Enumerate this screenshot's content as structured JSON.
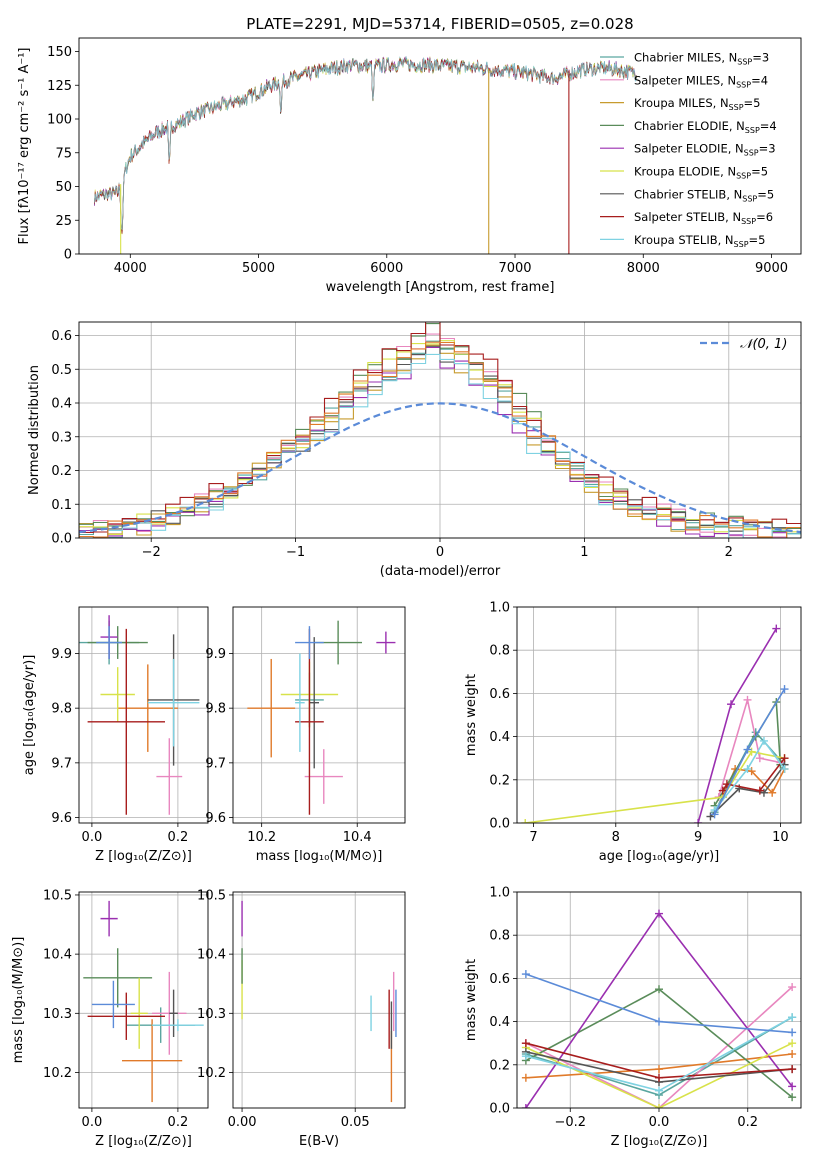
{
  "figure": {
    "title": "PLATE=2291, MJD=53714, FIBERID=0505, z=0.028"
  },
  "chart_data": [
    {
      "id": "spectrum",
      "type": "line",
      "xlabel": "wavelength [Angstrom, rest frame]",
      "ylabel": "Flux [fλ10⁻¹⁷ erg cm⁻² s⁻¹ A⁻¹]",
      "xlim": [
        3600,
        9230
      ],
      "ylim": [
        0,
        160
      ],
      "xticks": [
        4000,
        5000,
        6000,
        7000,
        8000,
        9000
      ],
      "yticks": [
        0,
        25,
        50,
        75,
        100,
        125,
        150
      ],
      "continuum": {
        "x": [
          3720,
          3800,
          3900,
          4000,
          4100,
          4200,
          4300,
          4400,
          4500,
          4700,
          4900,
          5100,
          5300,
          5500,
          5700,
          5900,
          6100,
          6300,
          6500,
          6700,
          6900,
          7100,
          7300,
          7500,
          7700,
          7950
        ],
        "y": [
          42,
          44,
          45,
          72,
          82,
          90,
          94,
          98,
          104,
          110,
          115,
          125,
          131,
          136,
          140,
          139,
          141,
          140,
          139,
          138,
          136,
          134,
          130,
          136,
          138,
          134
        ]
      },
      "dips": [
        {
          "x": 3934,
          "y": 12
        },
        {
          "x": 4304,
          "y": 60
        },
        {
          "x": 5175,
          "y": 100
        },
        {
          "x": 5893,
          "y": 108
        }
      ],
      "spikes": [
        {
          "x": 3925,
          "y": 0
        },
        {
          "x": 6795,
          "y": 0
        },
        {
          "x": 7420,
          "y": 0
        }
      ],
      "legend_position": "upper right",
      "series": [
        {
          "name": "Chabrier MILES, N_SSP=3",
          "label": "Chabrier MILES, N",
          "sub": "SSP",
          "tail": "=3",
          "color": "#5aa6a0"
        },
        {
          "name": "Salpeter MILES, N_SSP=4",
          "label": "Salpeter MILES, N",
          "sub": "SSP",
          "tail": "=4",
          "color": "#e887bf"
        },
        {
          "name": "Kroupa MILES, N_SSP=5",
          "label": "Kroupa MILES, N",
          "sub": "SSP",
          "tail": "=5",
          "color": "#c79b2e"
        },
        {
          "name": "Chabrier ELODIE, N_SSP=4",
          "label": "Chabrier ELODIE, N",
          "sub": "SSP",
          "tail": "=4",
          "color": "#5a8c5a"
        },
        {
          "name": "Salpeter ELODIE, N_SSP=3",
          "label": "Salpeter ELODIE, N",
          "sub": "SSP",
          "tail": "=3",
          "color": "#9a2fb0"
        },
        {
          "name": "Kroupa ELODIE, N_SSP=5",
          "label": "Kroupa ELODIE, N",
          "sub": "SSP",
          "tail": "=5",
          "color": "#d8e24a"
        },
        {
          "name": "Chabrier STELIB, N_SSP=5",
          "label": "Chabrier STELIB, N",
          "sub": "SSP",
          "tail": "=5",
          "color": "#555555"
        },
        {
          "name": "Salpeter STELIB, N_SSP=6",
          "label": "Salpeter STELIB, N",
          "sub": "SSP",
          "tail": "=6",
          "color": "#a71d1d"
        },
        {
          "name": "Kroupa STELIB, N_SSP=5",
          "label": "Kroupa STELIB, N",
          "sub": "SSP",
          "tail": "=5",
          "color": "#7fd2e2"
        }
      ]
    },
    {
      "id": "residual_hist",
      "type": "histogram",
      "xlabel": "(data-model)/error",
      "ylabel": "Normed distribution",
      "xlim": [
        -2.5,
        2.5
      ],
      "ylim": [
        0,
        0.64
      ],
      "xticks": [
        -2,
        -1,
        0,
        1,
        2
      ],
      "yticks": [
        0.0,
        0.1,
        0.2,
        0.3,
        0.4,
        0.5,
        0.6
      ],
      "grid": true,
      "bin_width": 0.1,
      "envelope_x": [
        -2.45,
        -2.25,
        -2.05,
        -1.85,
        -1.65,
        -1.45,
        -1.25,
        -1.05,
        -0.85,
        -0.65,
        -0.45,
        -0.25,
        -0.15,
        -0.05,
        0.05,
        0.15,
        0.25,
        0.45,
        0.65,
        0.85,
        1.05,
        1.25,
        1.45,
        1.65,
        1.85,
        2.05,
        2.25,
        2.45
      ],
      "envelope_y": [
        0.02,
        0.03,
        0.04,
        0.07,
        0.1,
        0.14,
        0.2,
        0.26,
        0.32,
        0.4,
        0.48,
        0.52,
        0.56,
        0.58,
        0.55,
        0.53,
        0.5,
        0.42,
        0.32,
        0.24,
        0.17,
        0.11,
        0.08,
        0.05,
        0.04,
        0.03,
        0.02,
        0.01
      ],
      "gaussian": {
        "name": "𝒩(0, 1)",
        "mu": 0,
        "sigma": 1,
        "color": "#5b8bd8"
      },
      "legend_position": "upper right"
    },
    {
      "id": "age_vs_Z",
      "type": "errorbar",
      "xlabel": "Z [log₁₀(Z/Z⊙)]",
      "ylabel": "age  [log₁₀(age/yr)]",
      "xlim": [
        -0.03,
        0.27
      ],
      "ylim": [
        9.59,
        9.985
      ],
      "xticks": [
        0.0,
        0.2
      ],
      "yticks": [
        9.6,
        9.7,
        9.8,
        9.9
      ],
      "points": [
        {
          "x": 0.04,
          "xerr": 0.07,
          "y": 9.92,
          "yerr": 0.04,
          "color": "#5aa6a0"
        },
        {
          "x": 0.18,
          "xerr": 0.03,
          "y": 9.675,
          "yerr": 0.07,
          "color": "#e887bf"
        },
        {
          "x": 0.13,
          "xerr": 0.07,
          "y": 9.8,
          "yerr": 0.08,
          "color": "#e07a2a"
        },
        {
          "x": 0.06,
          "xerr": 0.07,
          "y": 9.92,
          "yerr": 0.03,
          "color": "#5a8c5a"
        },
        {
          "x": 0.04,
          "xerr": 0.02,
          "y": 9.93,
          "yerr": 0.04,
          "color": "#9a2fb0"
        },
        {
          "x": 0.06,
          "xerr": 0.04,
          "y": 9.825,
          "yerr": 0.05,
          "color": "#d8e24a"
        },
        {
          "x": 0.19,
          "xerr": 0.06,
          "y": 9.815,
          "yerr": 0.12,
          "color": "#555555"
        },
        {
          "x": 0.08,
          "xerr": 0.09,
          "y": 9.775,
          "yerr": 0.17,
          "color": "#a71d1d"
        },
        {
          "x": 0.19,
          "xerr": 0.06,
          "y": 9.81,
          "yerr": 0.08,
          "color": "#7fd2e2"
        },
        {
          "x": 0.04,
          "xerr": 0.03,
          "y": 9.92,
          "yerr": 0.03,
          "color": "#5b8bd8"
        }
      ]
    },
    {
      "id": "age_vs_mass",
      "type": "errorbar",
      "xlabel": "mass [log₁₀(M/M⊙)]",
      "ylabel": "",
      "xlim": [
        10.14,
        10.5
      ],
      "ylim": [
        9.59,
        9.985
      ],
      "xticks": [
        10.2,
        10.4
      ],
      "yticks": [
        9.6,
        9.7,
        9.8,
        9.9
      ],
      "points": [
        {
          "x": 10.3,
          "xerr": 0.03,
          "y": 9.815,
          "yerr": 0.05,
          "color": "#5aa6a0"
        },
        {
          "x": 10.33,
          "xerr": 0.04,
          "y": 9.675,
          "yerr": 0.05,
          "color": "#e887bf"
        },
        {
          "x": 10.22,
          "xerr": 0.05,
          "y": 9.8,
          "yerr": 0.09,
          "color": "#e07a2a"
        },
        {
          "x": 10.36,
          "xerr": 0.05,
          "y": 9.92,
          "yerr": 0.04,
          "color": "#5a8c5a"
        },
        {
          "x": 10.46,
          "xerr": 0.02,
          "y": 9.92,
          "yerr": 0.02,
          "color": "#9a2fb0"
        },
        {
          "x": 10.3,
          "xerr": 0.06,
          "y": 9.825,
          "yerr": 0.06,
          "color": "#d8e24a"
        },
        {
          "x": 10.31,
          "xerr": 0.01,
          "y": 9.81,
          "yerr": 0.12,
          "color": "#555555"
        },
        {
          "x": 10.3,
          "xerr": 0.03,
          "y": 9.775,
          "yerr": 0.17,
          "color": "#a71d1d"
        },
        {
          "x": 10.28,
          "xerr": 0.01,
          "y": 9.81,
          "yerr": 0.09,
          "color": "#7fd2e2"
        },
        {
          "x": 10.3,
          "xerr": 0.03,
          "y": 9.92,
          "yerr": 0.03,
          "color": "#5b8bd8"
        }
      ]
    },
    {
      "id": "massweight_vs_age",
      "type": "line",
      "xlabel": "age  [log₁₀(age/yr)]",
      "ylabel": "mass weight",
      "xlim": [
        6.8,
        10.25
      ],
      "ylim": [
        0,
        1
      ],
      "xticks": [
        7,
        8,
        9,
        10
      ],
      "yticks": [
        0.0,
        0.2,
        0.4,
        0.6,
        0.8,
        1.0
      ],
      "grid": true,
      "marker": "+",
      "series": [
        {
          "color": "#5aa6a0",
          "x": [
            9.2,
            9.7,
            10.05
          ],
          "y": [
            0.05,
            0.42,
            0.27
          ]
        },
        {
          "color": "#e887bf",
          "x": [
            9.25,
            9.6,
            9.75,
            10.0
          ],
          "y": [
            0.12,
            0.57,
            0.3,
            0.28
          ]
        },
        {
          "color": "#e07a2a",
          "x": [
            9.3,
            9.45,
            9.65,
            9.9,
            10.05
          ],
          "y": [
            0.12,
            0.25,
            0.24,
            0.14,
            0.25
          ]
        },
        {
          "color": "#5a8c5a",
          "x": [
            9.2,
            9.7,
            9.95,
            10.0
          ],
          "y": [
            0.08,
            0.4,
            0.56,
            0.27
          ]
        },
        {
          "color": "#9a2fb0",
          "x": [
            9.0,
            9.4,
            9.95
          ],
          "y": [
            0.0,
            0.55,
            0.9
          ]
        },
        {
          "color": "#d8e24a",
          "x": [
            6.9,
            9.3,
            9.65,
            10.05
          ],
          "y": [
            0.0,
            0.12,
            0.33,
            0.3
          ]
        },
        {
          "color": "#555555",
          "x": [
            9.15,
            9.5,
            9.8,
            10.05
          ],
          "y": [
            0.03,
            0.16,
            0.14,
            0.27
          ]
        },
        {
          "color": "#a71d1d",
          "x": [
            9.3,
            9.35,
            9.75,
            10.05
          ],
          "y": [
            0.15,
            0.18,
            0.15,
            0.3
          ]
        },
        {
          "color": "#7fd2e2",
          "x": [
            9.2,
            9.6,
            9.8,
            10.05
          ],
          "y": [
            0.06,
            0.25,
            0.38,
            0.25
          ]
        },
        {
          "color": "#5b8bd8",
          "x": [
            9.2,
            9.6,
            10.05
          ],
          "y": [
            0.04,
            0.34,
            0.62
          ]
        }
      ]
    },
    {
      "id": "mass_vs_Z",
      "type": "errorbar",
      "xlabel": "Z [log₁₀(Z/Z⊙)]",
      "ylabel": "mass [log₁₀(M/M⊙)]",
      "xlim": [
        -0.03,
        0.27
      ],
      "ylim": [
        10.14,
        10.505
      ],
      "xticks": [
        0.0,
        0.2
      ],
      "yticks": [
        10.2,
        10.3,
        10.4,
        10.5
      ],
      "points": [
        {
          "x": 0.16,
          "xerr": 0.08,
          "y": 10.28,
          "yerr": 0.03,
          "color": "#5aa6a0"
        },
        {
          "x": 0.18,
          "xerr": 0.04,
          "y": 10.3,
          "yerr": 0.07,
          "color": "#e887bf"
        },
        {
          "x": 0.14,
          "xerr": 0.07,
          "y": 10.22,
          "yerr": 0.07,
          "color": "#e07a2a"
        },
        {
          "x": 0.06,
          "xerr": 0.08,
          "y": 10.36,
          "yerr": 0.05,
          "color": "#5a8c5a"
        },
        {
          "x": 0.04,
          "xerr": 0.02,
          "y": 10.46,
          "yerr": 0.03,
          "color": "#9a2fb0"
        },
        {
          "x": 0.11,
          "xerr": 0.02,
          "y": 10.3,
          "yerr": 0.06,
          "color": "#d8e24a"
        },
        {
          "x": 0.19,
          "xerr": 0.01,
          "y": 10.3,
          "yerr": 0.04,
          "color": "#555555"
        },
        {
          "x": 0.08,
          "xerr": 0.09,
          "y": 10.295,
          "yerr": 0.04,
          "color": "#a71d1d"
        },
        {
          "x": 0.2,
          "xerr": 0.06,
          "y": 10.28,
          "yerr": 0.01,
          "color": "#7fd2e2"
        },
        {
          "x": 0.05,
          "xerr": 0.05,
          "y": 10.315,
          "yerr": 0.04,
          "color": "#5b8bd8"
        }
      ]
    },
    {
      "id": "mass_vs_ebv",
      "type": "errorbar",
      "xlabel": "E(B-V)",
      "ylabel": "",
      "xlim": [
        -0.004,
        0.072
      ],
      "ylim": [
        10.14,
        10.505
      ],
      "xticks": [
        0.0,
        0.05
      ],
      "yticks": [
        10.2,
        10.3,
        10.4,
        10.5
      ],
      "points": [
        {
          "x": 0.0,
          "xerr": 0,
          "y": 10.34,
          "yerr": 0.05,
          "color": "#d8e24a"
        },
        {
          "x": 0.0,
          "xerr": 0,
          "y": 10.38,
          "yerr": 0.03,
          "color": "#5a8c5a"
        },
        {
          "x": 0.0,
          "xerr": 0,
          "y": 10.46,
          "yerr": 0.03,
          "color": "#9a2fb0"
        },
        {
          "x": 0.057,
          "xerr": 0,
          "y": 10.3,
          "yerr": 0.03,
          "color": "#7fd2e2"
        },
        {
          "x": 0.065,
          "xerr": 0,
          "y": 10.29,
          "yerr": 0.05,
          "color": "#a71d1d"
        },
        {
          "x": 0.066,
          "xerr": 0,
          "y": 10.21,
          "yerr": 0.06,
          "color": "#e07a2a"
        },
        {
          "x": 0.067,
          "xerr": 0,
          "y": 10.32,
          "yerr": 0.05,
          "color": "#e887bf"
        },
        {
          "x": 0.068,
          "xerr": 0,
          "y": 10.3,
          "yerr": 0.04,
          "color": "#5b8bd8"
        },
        {
          "x": 0.066,
          "xerr": 0,
          "y": 10.28,
          "yerr": 0.04,
          "color": "#555555"
        }
      ]
    },
    {
      "id": "massweight_vs_Z",
      "type": "line",
      "xlabel": "Z [log₁₀(Z/Z⊙)]",
      "ylabel": "mass weight",
      "xlim": [
        -0.32,
        0.32
      ],
      "ylim": [
        0,
        1
      ],
      "xticks": [
        -0.2,
        0.0,
        0.2
      ],
      "yticks": [
        0.0,
        0.2,
        0.4,
        0.6,
        0.8,
        1.0
      ],
      "grid": true,
      "marker": "+",
      "series": [
        {
          "color": "#5aa6a0",
          "x": [
            -0.3,
            0.0,
            0.3
          ],
          "y": [
            0.25,
            0.06,
            0.42
          ]
        },
        {
          "color": "#e887bf",
          "x": [
            -0.3,
            0.0,
            0.3
          ],
          "y": [
            0.3,
            0.0,
            0.56
          ]
        },
        {
          "color": "#e07a2a",
          "x": [
            -0.3,
            0.0,
            0.3
          ],
          "y": [
            0.14,
            0.18,
            0.25
          ]
        },
        {
          "color": "#5a8c5a",
          "x": [
            -0.3,
            0.0,
            0.3
          ],
          "y": [
            0.22,
            0.55,
            0.05
          ]
        },
        {
          "color": "#9a2fb0",
          "x": [
            -0.3,
            0.0,
            0.3
          ],
          "y": [
            0.0,
            0.9,
            0.1
          ]
        },
        {
          "color": "#d8e24a",
          "x": [
            -0.3,
            0.0,
            0.3
          ],
          "y": [
            0.28,
            0.0,
            0.3
          ]
        },
        {
          "color": "#555555",
          "x": [
            -0.3,
            0.0,
            0.3
          ],
          "y": [
            0.26,
            0.12,
            0.18
          ]
        },
        {
          "color": "#a71d1d",
          "x": [
            -0.3,
            0.0,
            0.3
          ],
          "y": [
            0.3,
            0.14,
            0.18
          ]
        },
        {
          "color": "#7fd2e2",
          "x": [
            -0.3,
            0.0,
            0.3
          ],
          "y": [
            0.24,
            0.08,
            0.42
          ]
        },
        {
          "color": "#5b8bd8",
          "x": [
            -0.3,
            0.0,
            0.3
          ],
          "y": [
            0.62,
            0.4,
            0.35
          ]
        }
      ]
    }
  ]
}
